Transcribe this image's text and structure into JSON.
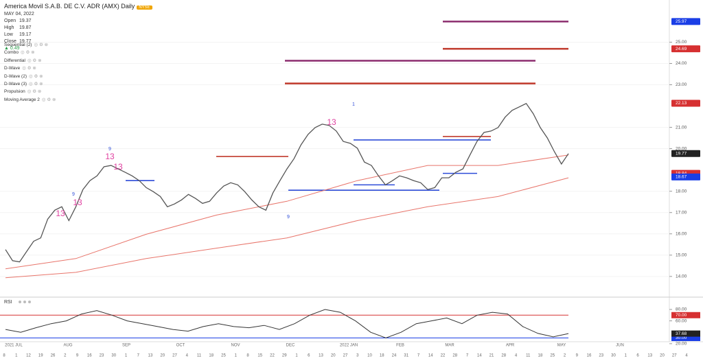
{
  "header": {
    "title": "America Movil S.A.B. DE C.V. ADR (AMX) Daily",
    "exchange": "NYSE",
    "date": "MAY 04, 2022",
    "ohlc": [
      {
        "label": "Open",
        "value": 19.37
      },
      {
        "label": "High",
        "value": 19.87
      },
      {
        "label": "Low",
        "value": 19.17
      },
      {
        "label": "Close",
        "value": 19.77
      }
    ],
    "change": 0.49
  },
  "indicators": [
    "Sequential (2)",
    "Combo",
    "Differential",
    "D-Wave",
    "D-Wave (2)",
    "D-Wave (3)",
    "Propulsion",
    "Moving Average 2"
  ],
  "price_chart": {
    "type": "line",
    "ylim": [
      13.06,
      26.98
    ],
    "yticks": [
      {
        "value": 14,
        "label": "14.00"
      },
      {
        "value": 15,
        "label": "15.00"
      },
      {
        "value": 16,
        "label": "16.00"
      },
      {
        "value": 17,
        "label": "17.00"
      },
      {
        "value": 18,
        "label": "18.00"
      },
      {
        "value": 20,
        "label": "20.00"
      },
      {
        "value": 21,
        "label": "21.00"
      },
      {
        "value": 23,
        "label": "23.00"
      },
      {
        "value": 24,
        "label": "24.00"
      },
      {
        "value": 25,
        "label": "25.00"
      }
    ],
    "close": {
      "color": "#555555",
      "values": [
        15.26,
        14.74,
        14.68,
        15.17,
        15.65,
        15.81,
        16.69,
        17.11,
        17.27,
        16.62,
        17.27,
        18.08,
        18.5,
        18.72,
        19.15,
        19.21,
        19.05,
        18.89,
        18.72,
        18.5,
        18.17,
        17.98,
        17.75,
        17.27,
        17.4,
        17.59,
        17.85,
        17.66,
        17.43,
        17.53,
        17.92,
        18.24,
        18.4,
        18.3,
        17.98,
        17.59,
        17.27,
        17.11,
        17.92,
        18.5,
        19.05,
        19.53,
        20.18,
        20.67,
        20.99,
        21.15,
        21.09,
        20.83,
        20.34,
        20.25,
        20.02,
        19.37,
        19.21,
        18.72,
        18.3,
        18.5,
        18.72,
        18.63,
        18.5,
        18.4,
        18.08,
        18.17,
        18.63,
        18.63,
        18.89,
        19.05,
        19.7,
        20.34,
        20.76,
        20.83,
        20.99,
        21.48,
        21.8,
        21.96,
        22.12,
        21.64,
        20.99,
        20.5,
        19.86,
        19.28,
        19.77
      ]
    },
    "moving_averages": [
      {
        "color": "#e8746a",
        "values": [
          14.36,
          14.84,
          15.98,
          16.88,
          17.53,
          18.5,
          19.21,
          19.21,
          19.7
        ]
      },
      {
        "color": "#e8746a",
        "values": [
          13.94,
          14.19,
          14.84,
          15.33,
          15.81,
          16.62,
          17.27,
          17.75,
          18.63
        ]
      }
    ],
    "levels": [
      {
        "value": 25.97,
        "color": "#8b2c6e"
      },
      {
        "value": 24.69,
        "color": "#c0392b"
      },
      {
        "value": 24.13,
        "color": "#8b2c6e"
      },
      {
        "value": 23.06,
        "color": "#c0392b"
      },
      {
        "value": 20.57,
        "color": "#c0392b"
      },
      {
        "value": 20.41,
        "color": "#2c4bd8"
      },
      {
        "value": 19.63,
        "color": "#c0392b"
      },
      {
        "value": 18.5,
        "color": "#2c4bd8"
      },
      {
        "value": 18.3,
        "color": "#2c4bd8"
      },
      {
        "value": 18.84,
        "color": "#2c4bd8"
      },
      {
        "value": 18.05,
        "color": "#2c4bd8"
      }
    ],
    "price_labels": [
      {
        "value": 25.97,
        "label": "25.97",
        "color": "#1a3ee6"
      },
      {
        "value": 24.69,
        "label": "24.69",
        "color": "#d63031"
      },
      {
        "value": 22.13,
        "label": "22.13",
        "color": "#d63031"
      },
      {
        "value": 19.77,
        "label": "19.77",
        "color": "#222222"
      },
      {
        "value": 18.84,
        "label": "18.84",
        "color": "#d63031"
      },
      {
        "value": 18.67,
        "label": "18.67",
        "color": "#1a3ee6"
      }
    ],
    "annotations": [
      {
        "text": "13",
        "color": "#e040a0"
      },
      {
        "text": "13",
        "color": "#e040a0"
      },
      {
        "text": "13",
        "color": "#e040a0"
      },
      {
        "text": "13",
        "color": "#e040a0"
      },
      {
        "text": "13",
        "color": "#e040a0"
      },
      {
        "text": "9",
        "color": "#2c4bd8"
      },
      {
        "text": "9",
        "color": "#2c4bd8"
      },
      {
        "text": "9",
        "color": "#2c4bd8"
      },
      {
        "text": "1",
        "color": "#2c4bd8"
      }
    ]
  },
  "rsi_chart": {
    "title": "RSI",
    "ylim": [
      15,
      98
    ],
    "color": "#333333",
    "yticks": [
      {
        "value": 80,
        "label": "80.00"
      },
      {
        "value": 60,
        "label": "60.00"
      },
      {
        "value": 20,
        "label": "20.00"
      }
    ],
    "values": [
      45,
      40,
      48,
      55,
      60,
      72,
      78,
      70,
      60,
      55,
      50,
      45,
      42,
      50,
      55,
      50,
      48,
      52,
      45,
      55,
      70,
      80,
      75,
      60,
      40,
      30,
      40,
      55,
      60,
      65,
      55,
      70,
      75,
      72,
      50,
      38,
      32,
      37.68
    ],
    "levels": [
      {
        "value": 70,
        "label": "70.00",
        "color": "#d63031"
      },
      {
        "value": 30,
        "label": "30.00",
        "color": "#1a3ee6"
      }
    ],
    "current": {
      "value": 37.68,
      "label": "37.68",
      "color": "#222222"
    }
  },
  "time_axis": {
    "months": [
      "2021 JUL",
      "AUG",
      "SEP",
      "OCT",
      "NOV",
      "DEC",
      "2022 JAN",
      "FEB",
      "MAR",
      "APR",
      "MAY",
      "JUN"
    ],
    "days": [
      "8",
      "1",
      "12",
      "19",
      "26",
      "2",
      "9",
      "16",
      "23",
      "30",
      "1",
      "7",
      "13",
      "20",
      "27",
      "4",
      "11",
      "18",
      "25",
      "1",
      "8",
      "15",
      "22",
      "29",
      "1",
      "6",
      "13",
      "20",
      "27",
      "3",
      "10",
      "18",
      "24",
      "31",
      "7",
      "14",
      "22",
      "28",
      "7",
      "14",
      "21",
      "28",
      "4",
      "11",
      "18",
      "25",
      "2",
      "9",
      "16",
      "23",
      "30",
      "1",
      "6",
      "13",
      "20",
      "27",
      "4"
    ]
  }
}
